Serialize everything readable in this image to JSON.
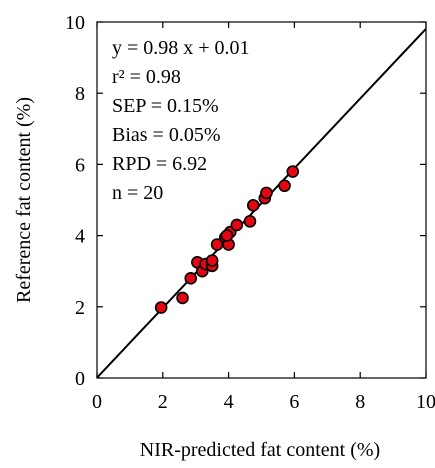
{
  "chart_data": {
    "type": "scatter",
    "title": "",
    "xlabel": "NIR-predicted fat content (%)",
    "ylabel": "Reference fat content (%)",
    "xlim": [
      0,
      10
    ],
    "ylim": [
      0,
      10
    ],
    "xticks": [
      "0",
      "2",
      "4",
      "6",
      "8",
      "10"
    ],
    "yticks": [
      "0",
      "2",
      "4",
      "6",
      "8",
      "10"
    ],
    "grid": false,
    "legend": "none",
    "marker_color": "#e30613",
    "marker_edge_color": "#000000",
    "fit_line": {
      "slope": 0.98,
      "intercept": 0.01,
      "color": "#000000"
    },
    "annotations": [
      "y = 0.98 x + 0.01",
      "r² = 0.98",
      "SEP = 0.15%",
      "Bias = 0.05%",
      "RPD = 6.92",
      "n = 20"
    ],
    "series": [
      {
        "points": [
          {
            "x": 1.95,
            "y": 1.98
          },
          {
            "x": 2.6,
            "y": 2.25
          },
          {
            "x": 2.85,
            "y": 2.8
          },
          {
            "x": 3.05,
            "y": 3.25
          },
          {
            "x": 3.2,
            "y": 3.0
          },
          {
            "x": 3.3,
            "y": 3.2
          },
          {
            "x": 3.5,
            "y": 3.15
          },
          {
            "x": 3.5,
            "y": 3.3
          },
          {
            "x": 3.65,
            "y": 3.75
          },
          {
            "x": 3.9,
            "y": 3.95
          },
          {
            "x": 4.0,
            "y": 3.75
          },
          {
            "x": 4.05,
            "y": 4.1
          },
          {
            "x": 4.25,
            "y": 4.3
          },
          {
            "x": 4.65,
            "y": 4.4
          },
          {
            "x": 4.75,
            "y": 4.85
          },
          {
            "x": 5.1,
            "y": 5.05
          },
          {
            "x": 5.15,
            "y": 5.2
          },
          {
            "x": 5.7,
            "y": 5.4
          },
          {
            "x": 5.95,
            "y": 5.8
          },
          {
            "x": 3.95,
            "y": 4.0
          }
        ]
      }
    ]
  }
}
